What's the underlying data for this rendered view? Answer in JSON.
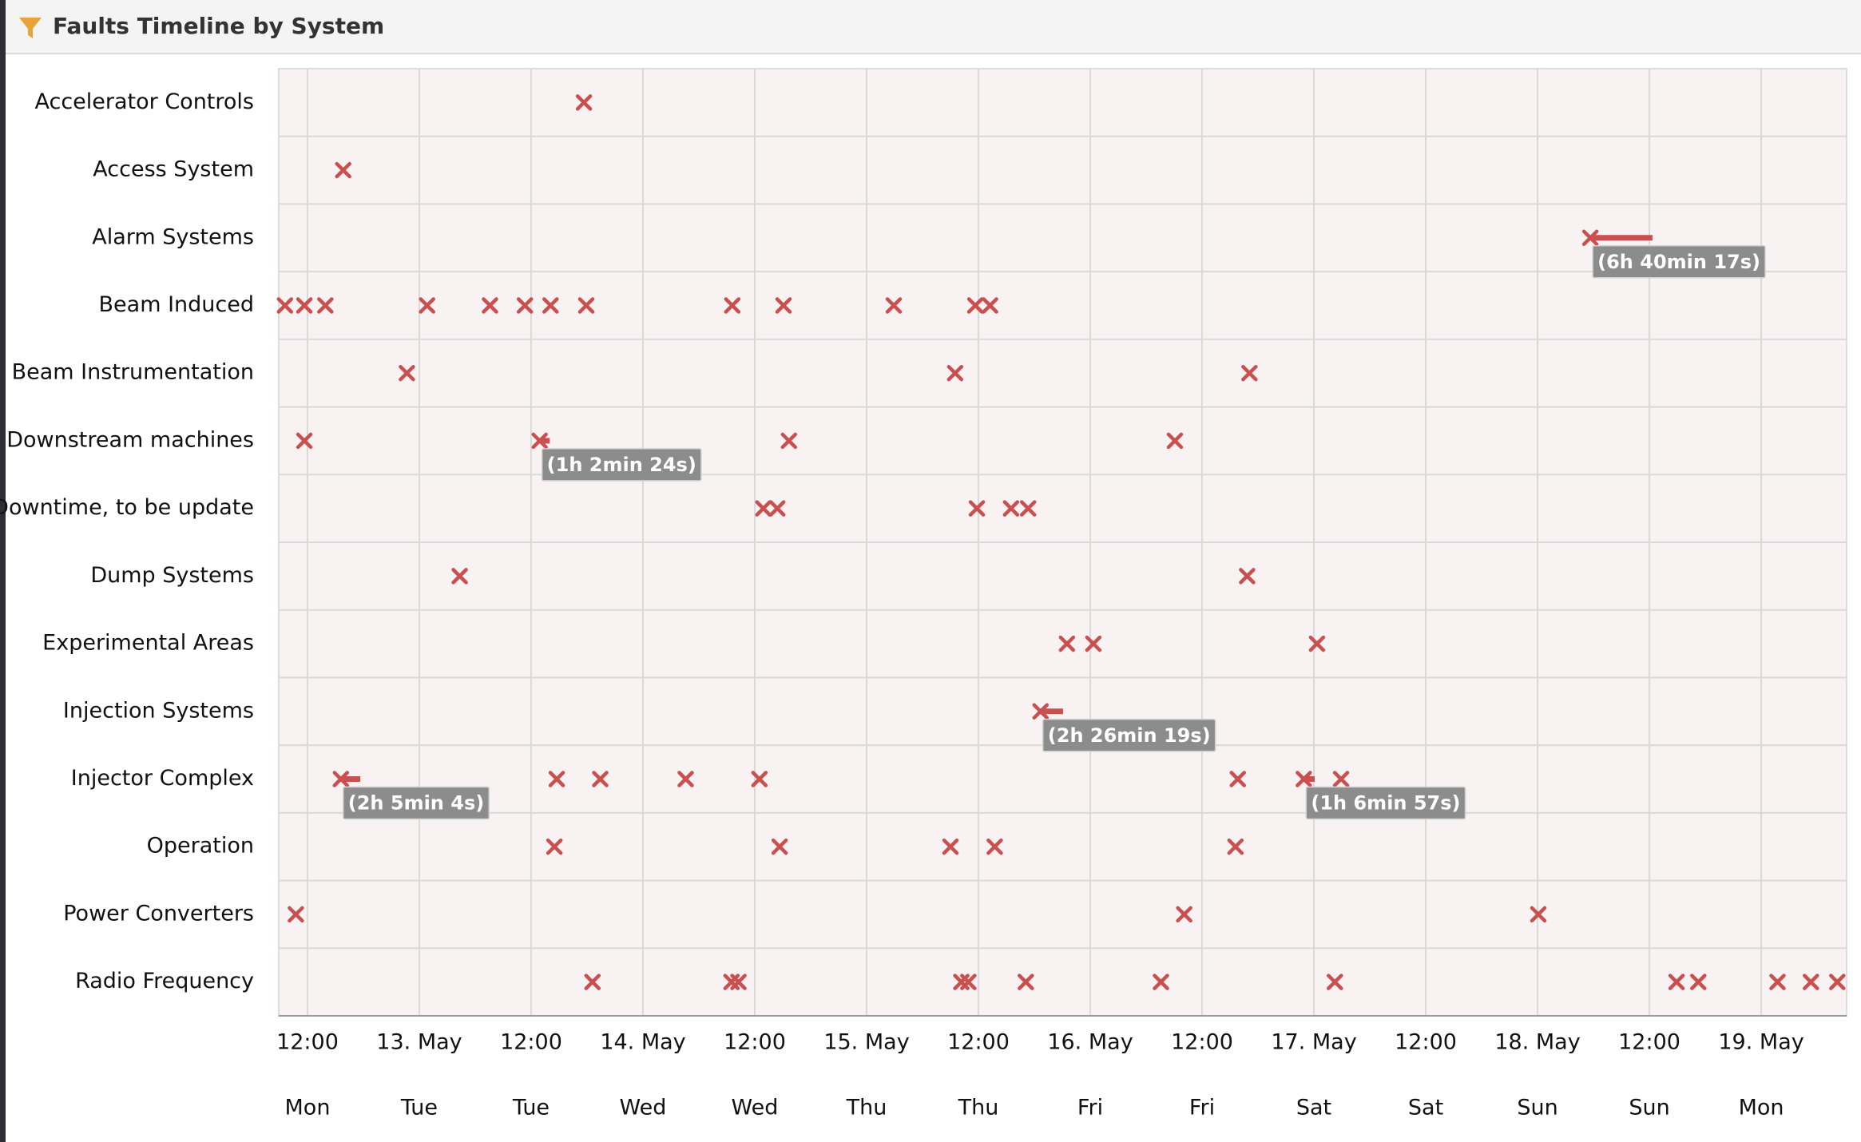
{
  "chart_data": {
    "type": "timeline",
    "title": "Faults Timeline by System",
    "color": "#c9504f",
    "grid": true,
    "xlim": [
      "12. May 08:55",
      "19. May 09:10"
    ],
    "xticks": [
      {
        "value": "12. May 12:00",
        "label": "12:00"
      },
      {
        "value": "13. May 00:00",
        "label": "13. May"
      },
      {
        "value": "13. May 12:00",
        "label": "12:00"
      },
      {
        "value": "14. May 00:00",
        "label": "14. May"
      },
      {
        "value": "14. May 12:00",
        "label": "12:00"
      },
      {
        "value": "15. May 00:00",
        "label": "15. May"
      },
      {
        "value": "15. May 12:00",
        "label": "12:00"
      },
      {
        "value": "16. May 00:00",
        "label": "16. May"
      },
      {
        "value": "16. May 12:00",
        "label": "12:00"
      },
      {
        "value": "17. May 00:00",
        "label": "17. May"
      },
      {
        "value": "17. May 12:00",
        "label": "12:00"
      },
      {
        "value": "18. May 00:00",
        "label": "18. May"
      },
      {
        "value": "18. May 12:00",
        "label": "12:00"
      },
      {
        "value": "19. May 00:00",
        "label": "19. May"
      }
    ],
    "x_weekdays": [
      "Mon",
      "Tue",
      "Tue",
      "Wed",
      "Wed",
      "Thu",
      "Thu",
      "Fri",
      "Fri",
      "Sat",
      "Sat",
      "Sun",
      "Sun",
      "Mon"
    ],
    "series": [
      {
        "name": "Accelerator Controls",
        "values": [
          "13. May 17:40"
        ],
        "ranges": []
      },
      {
        "name": "Access System",
        "values": [
          "12. May 15:50"
        ],
        "ranges": []
      },
      {
        "name": "Alarm Systems",
        "values": [],
        "ranges": [
          {
            "start": "18. May 05:40",
            "end": "18. May 12:20",
            "label": "(6h 40min 17s)"
          }
        ]
      },
      {
        "name": "Beam Induced",
        "values": [
          "12. May 09:35",
          "12. May 11:40",
          "12. May 13:55",
          "13. May 00:50",
          "13. May 07:35",
          "13. May 11:20",
          "13. May 14:05",
          "13. May 17:55",
          "14. May 09:35",
          "14. May 15:05",
          "15. May 02:55",
          "15. May 11:40",
          "15. May 13:15"
        ],
        "ranges": []
      },
      {
        "name": "Beam Instrumentation",
        "values": [
          "12. May 22:40",
          "15. May 09:30",
          "16. May 17:05"
        ],
        "ranges": []
      },
      {
        "name": "Downstream machines",
        "values": [
          "12. May 11:40",
          "14. May 15:40",
          "16. May 09:05"
        ],
        "ranges": [
          {
            "start": "13. May 12:55",
            "end": "13. May 14:00",
            "label": "(1h 2min 24s)"
          }
        ]
      },
      {
        "name": "Downtime, to be update",
        "values": [
          "14. May 12:55",
          "14. May 14:25",
          "15. May 11:50",
          "15. May 15:30",
          "15. May 17:20"
        ],
        "ranges": []
      },
      {
        "name": "Dump Systems",
        "values": [
          "13. May 04:20",
          "16. May 16:50"
        ],
        "ranges": []
      },
      {
        "name": "Experimental Areas",
        "values": [
          "15. May 21:30",
          "16. May 00:20",
          "17. May 00:20"
        ],
        "ranges": []
      },
      {
        "name": "Injection Systems",
        "values": [],
        "ranges": [
          {
            "start": "15. May 18:40",
            "end": "15. May 21:05",
            "label": "(2h 26min 19s)"
          }
        ]
      },
      {
        "name": "Injector Complex",
        "values": [
          "13. May 14:45",
          "13. May 19:25",
          "14. May 04:35",
          "14. May 12:30",
          "16. May 15:50",
          "17. May 02:55"
        ],
        "ranges": [
          {
            "start": "12. May 15:35",
            "end": "12. May 17:40",
            "label": "(2h 5min 4s)"
          },
          {
            "start": "16. May 22:55",
            "end": "17. May 00:05",
            "label": "(1h 6min 57s)"
          }
        ]
      },
      {
        "name": "Operation",
        "values": [
          "13. May 14:30",
          "14. May 14:40",
          "15. May 09:00",
          "15. May 13:45",
          "16. May 15:35"
        ],
        "ranges": []
      },
      {
        "name": "Power Converters",
        "values": [
          "12. May 10:45",
          "16. May 10:05",
          "18. May 00:05"
        ],
        "ranges": []
      },
      {
        "name": "Radio Frequency",
        "values": [
          "13. May 18:35",
          "14. May 09:30",
          "14. May 10:15",
          "15. May 10:10",
          "15. May 10:55",
          "15. May 17:05",
          "16. May 07:35",
          "17. May 02:15",
          "18. May 14:55",
          "18. May 17:15",
          "19. May 01:45",
          "19. May 05:20",
          "19. May 08:10"
        ],
        "ranges": []
      }
    ]
  }
}
